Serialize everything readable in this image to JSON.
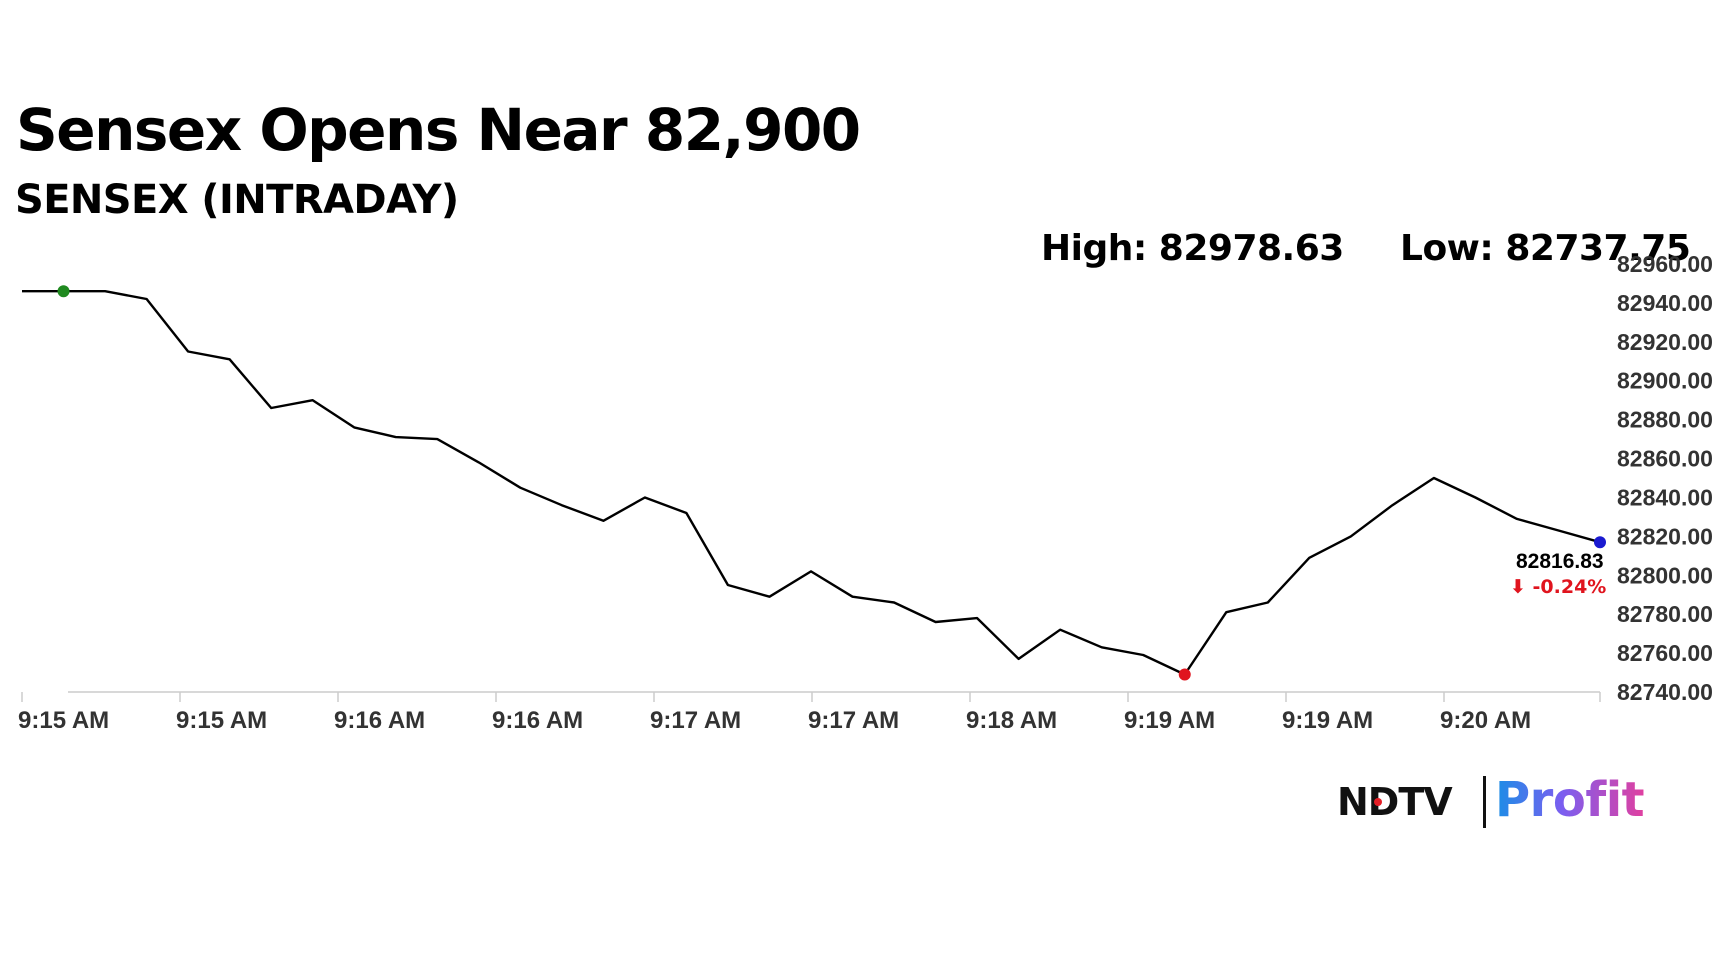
{
  "title": "Sensex Opens Near 82,900",
  "subtitle": "SENSEX (INTRADAY)",
  "high_label": "High: 82978.63",
  "low_label": "Low: 82737.75",
  "logo": {
    "ndtv": "NDTV",
    "profit": "Profit"
  },
  "chart_data": {
    "type": "line",
    "x_tick_labels": [
      "9:15 AM",
      "9:15 AM",
      "9:16 AM",
      "9:16 AM",
      "9:17 AM",
      "9:17 AM",
      "9:18 AM",
      "9:19 AM",
      "9:19 AM",
      "9:20 AM"
    ],
    "y_tick_labels": [
      "82960.00",
      "82940.00",
      "82920.00",
      "82900.00",
      "82880.00",
      "82860.00",
      "82840.00",
      "82820.00",
      "82800.00",
      "82780.00",
      "82760.00",
      "82740.00"
    ],
    "ylim": [
      82740,
      82960
    ],
    "grid": false,
    "series": [
      {
        "color": "#000000",
        "values": [
          82946,
          82946,
          82946,
          82942,
          82915,
          82911,
          82886,
          82890,
          82876,
          82871,
          82870,
          82858,
          82845,
          82836,
          82828,
          82840,
          82832,
          82795,
          82789,
          82802,
          82789,
          82786,
          82776,
          82778,
          82757,
          82772,
          82763,
          82759,
          82749,
          82781,
          82786,
          82809,
          82820,
          82836,
          82850,
          82840,
          82829,
          82823,
          82817
        ]
      }
    ],
    "markers": [
      {
        "index": 1,
        "color": "#1f8a1f"
      },
      {
        "index": 28,
        "color": "#e0141e"
      },
      {
        "index": 38,
        "color": "#1a1ad0"
      }
    ],
    "last_value_label": "82816.83",
    "change_label": "⬇ -0.24%",
    "change_color": "#e0141e"
  }
}
